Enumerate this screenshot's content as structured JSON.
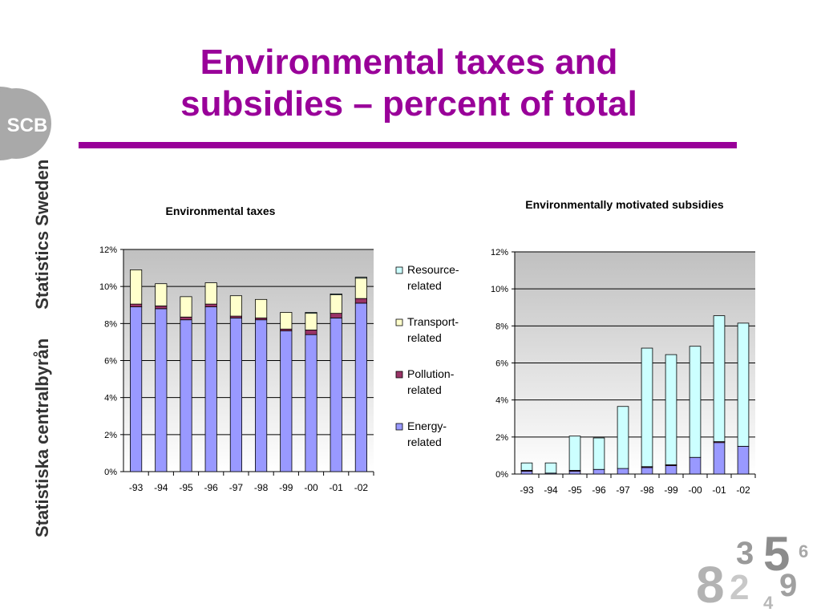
{
  "title": {
    "line1": "Environmental taxes and",
    "line2": "subsidies – percent of total"
  },
  "brand": {
    "logo_text": "SCB",
    "name_en": "Statistics Sweden",
    "name_sv": "Statistiska centralbyrån",
    "accent_color": "#990099",
    "deco_digits": [
      "8",
      "3",
      "5",
      "2",
      "9",
      "4",
      "6"
    ]
  },
  "chart_data": [
    {
      "type": "bar",
      "stacked": true,
      "title": "Environmental taxes",
      "xlabel": "",
      "ylabel": "",
      "categories": [
        "-93",
        "-94",
        "-95",
        "-96",
        "-97",
        "-98",
        "-99",
        "-00",
        "-01",
        "-02"
      ],
      "ylim": [
        0,
        12
      ],
      "ytick_labels": [
        "0%",
        "2%",
        "4%",
        "6%",
        "8%",
        "10%",
        "12%"
      ],
      "grid": true,
      "legend_position": "right",
      "series": [
        {
          "name": "Energy-related",
          "color": "#9999FF",
          "values": [
            8.9,
            8.8,
            8.2,
            8.9,
            8.3,
            8.2,
            7.6,
            7.4,
            8.3,
            9.1
          ]
        },
        {
          "name": "Pollution-related",
          "color": "#993366",
          "values": [
            0.15,
            0.15,
            0.15,
            0.15,
            0.1,
            0.1,
            0.1,
            0.25,
            0.25,
            0.25
          ]
        },
        {
          "name": "Transport-related",
          "color": "#FFFFCC",
          "values": [
            1.85,
            1.2,
            1.1,
            1.15,
            1.1,
            1.0,
            0.9,
            0.9,
            1.0,
            1.1
          ]
        },
        {
          "name": "Resource-related",
          "color": "#CCFFFF",
          "values": [
            0.0,
            0.0,
            0.0,
            0.0,
            0.0,
            0.0,
            0.0,
            0.05,
            0.05,
            0.05
          ]
        }
      ],
      "legend_items": [
        {
          "line1": "Resource-",
          "line2": "related",
          "color": "#CCFFFF"
        },
        {
          "line1": "Transport-",
          "line2": "related",
          "color": "#FFFFCC"
        },
        {
          "line1": "Pollution-",
          "line2": "related",
          "color": "#993366"
        },
        {
          "line1": "Energy-",
          "line2": "related",
          "color": "#9999FF"
        }
      ]
    },
    {
      "type": "bar",
      "stacked": true,
      "title": "Environmentally motivated subsidies",
      "xlabel": "",
      "ylabel": "",
      "categories": [
        "-93",
        "-94",
        "-95",
        "-96",
        "-97",
        "-98",
        "-99",
        "-00",
        "-01",
        "-02"
      ],
      "ylim": [
        0,
        12
      ],
      "ytick_labels": [
        "0%",
        "2%",
        "4%",
        "6%",
        "8%",
        "10%",
        "12%"
      ],
      "grid": true,
      "series": [
        {
          "name": "Energy-related",
          "color": "#9999FF",
          "values": [
            0.15,
            0.05,
            0.15,
            0.25,
            0.3,
            0.35,
            0.45,
            0.9,
            1.7,
            1.5
          ]
        },
        {
          "name": "Pollution-related",
          "color": "#993366",
          "values": [
            0.05,
            0.0,
            0.05,
            0.0,
            0.0,
            0.05,
            0.05,
            0.0,
            0.05,
            0.0
          ]
        },
        {
          "name": "Transport-related",
          "color": "#FFFFCC",
          "values": [
            0.0,
            0.0,
            0.0,
            0.0,
            0.0,
            0.0,
            0.0,
            0.0,
            0.0,
            0.0
          ]
        },
        {
          "name": "Resource-related",
          "color": "#CCFFFF",
          "values": [
            0.4,
            0.55,
            1.85,
            1.7,
            3.35,
            6.4,
            5.95,
            6.0,
            6.8,
            6.65
          ]
        }
      ]
    }
  ]
}
